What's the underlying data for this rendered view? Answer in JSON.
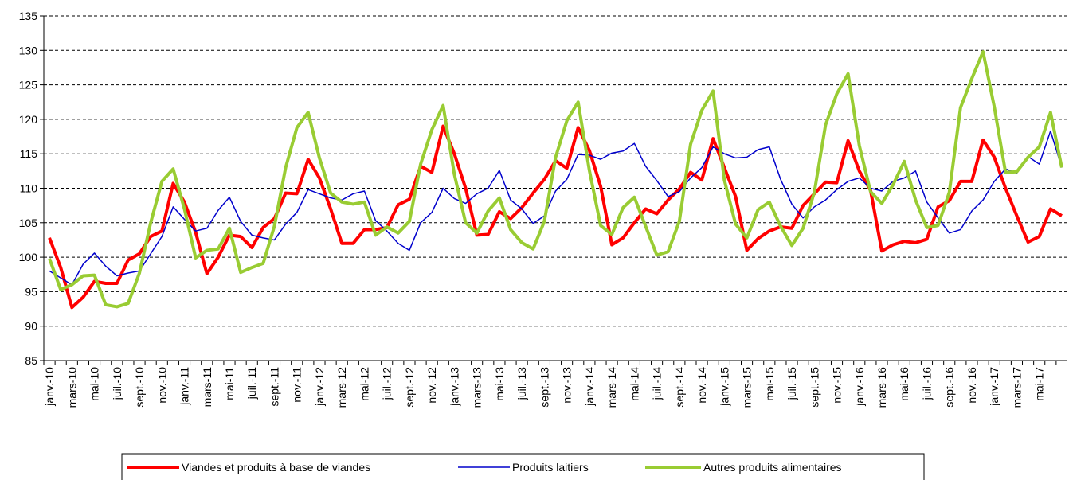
{
  "chart_data": {
    "type": "line",
    "categories": [
      "janv.-10",
      null,
      "mars-10",
      null,
      "mai-10",
      null,
      "juil.-10",
      null,
      "sept.-10",
      null,
      "nov.-10",
      null,
      "janv.-11",
      null,
      "mars-11",
      null,
      "mai-11",
      null,
      "juil.-11",
      null,
      "sept.-11",
      null,
      "nov.-11",
      null,
      "janv.-12",
      null,
      "mars-12",
      null,
      "mai-12",
      null,
      "juil.-12",
      null,
      "sept.-12",
      null,
      "nov.-12",
      null,
      "janv.-13",
      null,
      "mars-13",
      null,
      "mai-13",
      null,
      "juil.-13",
      null,
      "sept.-13",
      null,
      "nov.-13",
      null,
      "janv.-14",
      null,
      "mars-14",
      null,
      "mai-14",
      null,
      "juil.-14",
      null,
      "sept.-14",
      null,
      "nov.-14",
      null,
      "janv.-15",
      null,
      "mars-15",
      null,
      "mai-15",
      null,
      "juil.-15",
      null,
      "sept.-15",
      null,
      "nov.-15",
      null,
      "janv.-16",
      null,
      "mars-16",
      null,
      "mai-16",
      null,
      "juil.-16",
      null,
      "sept.-16",
      null,
      "nov.-16",
      null,
      "janv.-17",
      null,
      "mars-17",
      null,
      "mai-17",
      null,
      null
    ],
    "series": [
      {
        "name": "Viandes et produits à base de viandes",
        "color": "#ff0000",
        "width": 4,
        "values": [
          102.8,
          98.5,
          92.7,
          94.2,
          96.5,
          96.2,
          96.2,
          99.6,
          100.5,
          103,
          103.8,
          110.7,
          108,
          103.6,
          97.6,
          100,
          103.2,
          103,
          101.4,
          104.3,
          105.6,
          109.3,
          109.2,
          114.2,
          111.5,
          107,
          102,
          102,
          104,
          104,
          104.3,
          107.6,
          108.4,
          113.2,
          112.3,
          119,
          115,
          110,
          103.2,
          103.3,
          106.6,
          105.6,
          107.2,
          109.3,
          111.3,
          114,
          112.9,
          118.8,
          115.5,
          110.3,
          101.8,
          102.8,
          105,
          107,
          106.3,
          108.3,
          109.9,
          112.3,
          111.2,
          117.2,
          113,
          108.8,
          101,
          102.7,
          103.8,
          104.4,
          104.2,
          107.5,
          109.2,
          110.9,
          110.8,
          116.9,
          112.5,
          109.7,
          100.9,
          101.8,
          102.3,
          102.1,
          102.6,
          107.3,
          108.2,
          111,
          111,
          117,
          114.5,
          110,
          106,
          102.2,
          103,
          107,
          106
        ]
      },
      {
        "name": "Produits laitiers",
        "color": "#0000cc",
        "width": 1.5,
        "values": [
          98,
          97,
          96,
          99,
          100.6,
          98.7,
          97.3,
          97.7,
          98,
          100.5,
          103,
          107.3,
          105.5,
          103.8,
          104.2,
          106.8,
          108.7,
          105.2,
          103.2,
          102.8,
          102.5,
          104.8,
          106.5,
          109.8,
          109.2,
          108.6,
          108.3,
          109.2,
          109.6,
          105.3,
          103.8,
          102,
          101,
          105,
          106.5,
          110,
          108.5,
          107.8,
          109.2,
          110,
          112.6,
          108.3,
          107,
          104.9,
          106,
          109.6,
          111.3,
          114.9,
          114.8,
          114.2,
          115.1,
          115.4,
          116.5,
          113.2,
          111.1,
          108.8,
          109.5,
          111.5,
          113,
          116,
          115,
          114.4,
          114.5,
          115.6,
          116,
          111.3,
          107.7,
          105.7,
          107.3,
          108.3,
          109.8,
          111,
          111.5,
          110,
          109.6,
          111,
          111.5,
          112.5,
          108,
          105.7,
          103.5,
          104,
          106.7,
          108.3,
          111,
          112.8,
          112.2,
          114.6,
          113.5,
          118.3,
          113
        ]
      },
      {
        "name": "Autres produits alimentaires",
        "color": "#99cc33",
        "width": 4,
        "values": [
          99.8,
          95.3,
          96,
          97.3,
          97.4,
          93.1,
          92.8,
          93.3,
          97.7,
          105,
          111,
          112.8,
          107,
          99.9,
          101,
          101.2,
          104.2,
          97.8,
          98.5,
          99.1,
          104.5,
          113,
          118.8,
          121,
          114.4,
          109.3,
          108,
          107.7,
          108,
          103.2,
          104.4,
          103.5,
          105.2,
          113.5,
          118.5,
          122,
          112,
          105,
          103.5,
          106.7,
          108.6,
          104,
          102.1,
          101.2,
          105.2,
          114.5,
          119.8,
          122.5,
          112.6,
          104.6,
          103.3,
          107.2,
          108.7,
          104.5,
          100.3,
          100.8,
          105.2,
          116.4,
          121.3,
          124.1,
          111.2,
          104.8,
          102.8,
          106.9,
          108,
          104.5,
          101.7,
          104.2,
          109.4,
          119.2,
          123.7,
          126.6,
          116.2,
          109.5,
          107.8,
          110.5,
          113.9,
          108.3,
          104.3,
          104.6,
          109.4,
          121.7,
          125.9,
          129.8,
          121.8,
          112.3,
          112.4,
          114.5,
          116,
          121,
          113
        ]
      }
    ],
    "ylim": [
      85,
      135
    ],
    "yticks": [
      85,
      90,
      95,
      100,
      105,
      110,
      115,
      120,
      125,
      130,
      135
    ],
    "grid": true
  }
}
